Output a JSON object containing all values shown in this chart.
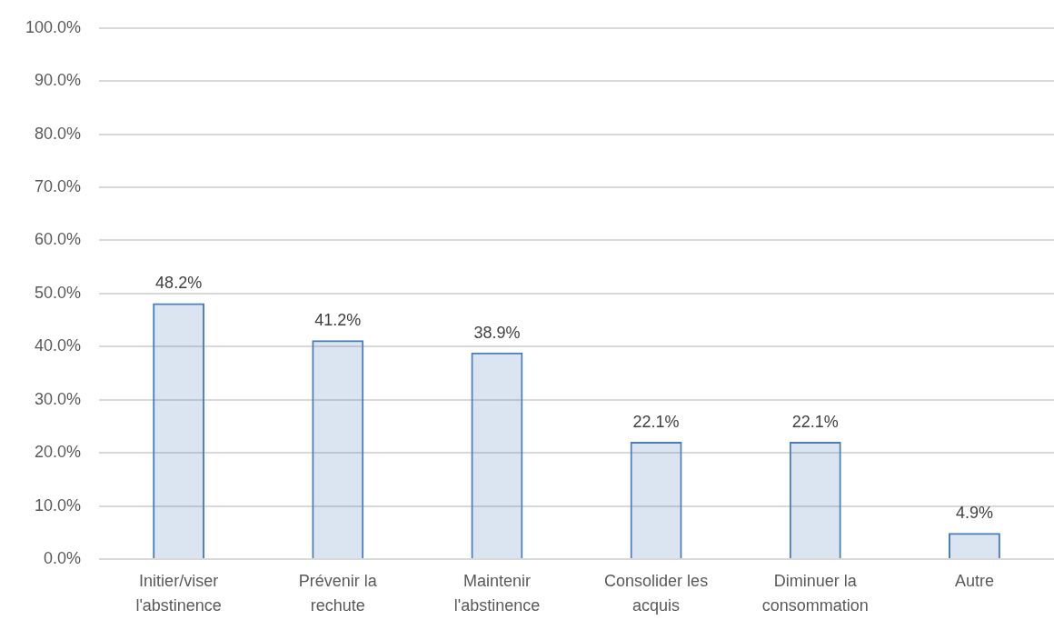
{
  "chart_data": {
    "type": "bar",
    "categories": [
      "Initier/viser l'abstinence",
      "Prévenir la rechute",
      "Maintenir l'abstinence",
      "Consolider les acquis",
      "Diminuer la consommation",
      "Autre"
    ],
    "values": [
      48.2,
      41.2,
      38.9,
      22.1,
      22.1,
      4.9
    ],
    "value_labels": [
      "48.2%",
      "41.2%",
      "38.9%",
      "22.1%",
      "22.1%",
      "4.9%"
    ],
    "color": "#4a7ebb",
    "ylim": [
      0,
      100
    ],
    "yticks": [
      {
        "value": 0,
        "label": "0.0%"
      },
      {
        "value": 10,
        "label": "10.0%"
      },
      {
        "value": 20,
        "label": "20.0%"
      },
      {
        "value": 30,
        "label": "30.0%"
      },
      {
        "value": 40,
        "label": "40.0%"
      },
      {
        "value": 50,
        "label": "50.0%"
      },
      {
        "value": 60,
        "label": "60.0%"
      },
      {
        "value": 70,
        "label": "70.0%"
      },
      {
        "value": 80,
        "label": "80.0%"
      },
      {
        "value": 90,
        "label": "90.0%"
      },
      {
        "value": 100,
        "label": "100.0%"
      }
    ],
    "grid": "y",
    "legend": false
  }
}
